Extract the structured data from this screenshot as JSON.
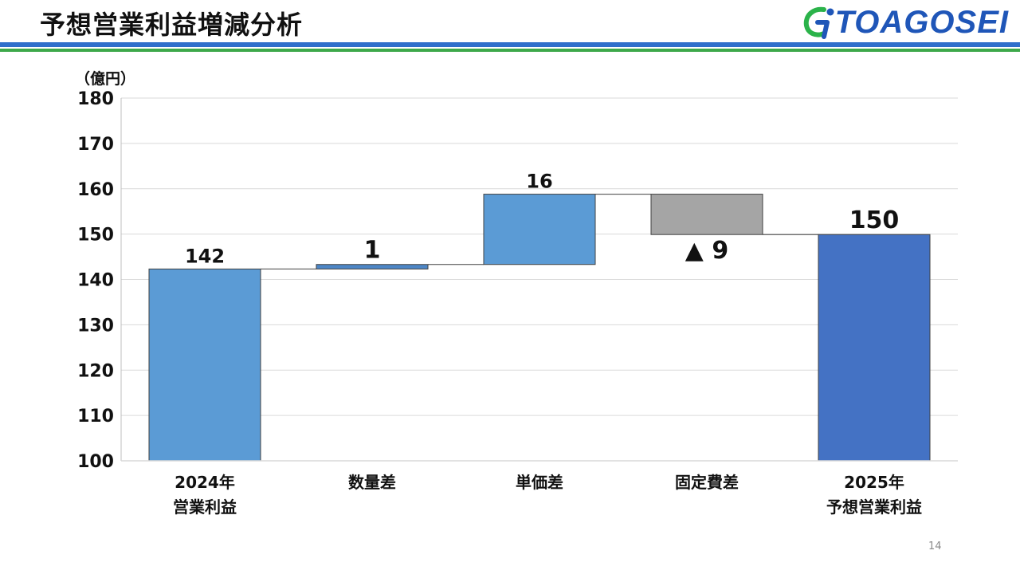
{
  "header": {
    "title": "予想営業利益増減分析",
    "logo_text": "TOAGOSEI",
    "logo_mark_icon": "toagosei-logo-icon"
  },
  "unit_label": "（億円）",
  "page_number": "14",
  "colors": {
    "header_rule_blue": "#2f6fcb",
    "header_rule_green": "#3da84a",
    "bar_light_blue": "#5b9bd5",
    "bar_dark_blue": "#4472c4",
    "bar_gray": "#a5a5a5"
  },
  "chart_data": {
    "type": "bar",
    "subtype": "waterfall",
    "ylim": [
      100,
      180
    ],
    "yticks": [
      100,
      110,
      120,
      130,
      140,
      150,
      160,
      170,
      180
    ],
    "grid": true,
    "categories": [
      [
        "2024年",
        "営業利益"
      ],
      [
        "数量差"
      ],
      [
        "単価差"
      ],
      [
        "固定費差"
      ],
      [
        "2025年",
        "予想営業利益"
      ]
    ],
    "bars": [
      {
        "kind": "total",
        "start": 100,
        "end": 142.3,
        "label": "142",
        "color": "#5b9bd5"
      },
      {
        "kind": "increase",
        "start": 142.3,
        "end": 143.3,
        "label": "1",
        "color": "#4d86c6"
      },
      {
        "kind": "increase",
        "start": 143.3,
        "end": 158.8,
        "label": "16",
        "color": "#5b9bd5"
      },
      {
        "kind": "decrease",
        "start": 158.8,
        "end": 149.9,
        "label": "▲ 9",
        "color": "#a5a5a5"
      },
      {
        "kind": "total",
        "start": 100,
        "end": 149.9,
        "label": "150",
        "color": "#4472c4"
      }
    ]
  }
}
